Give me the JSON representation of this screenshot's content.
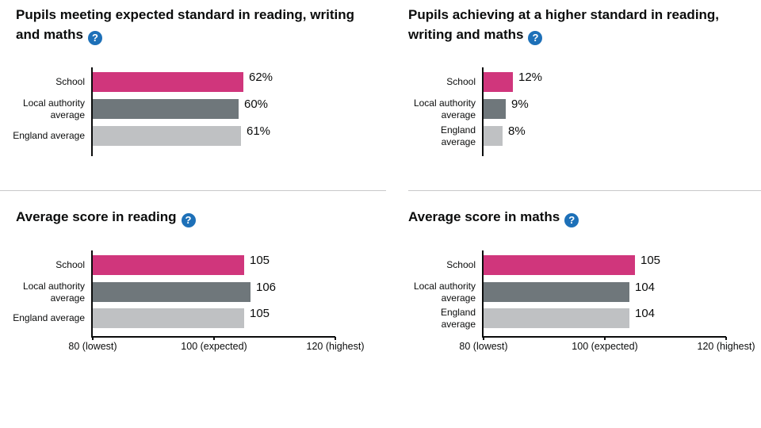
{
  "page": {
    "help_icon_glyph": "?"
  },
  "colors": {
    "title_text": "#0b0c0c",
    "axis": "#0b0c0c",
    "divider": "#c8c9ca",
    "help_icon_bg": "#1d70b8",
    "school_bar": "#d0367c",
    "local_authority_bar": "#6f777b",
    "england_bar": "#bfc1c3"
  },
  "chart_data": [
    {
      "type": "bar",
      "orientation": "horizontal",
      "title": "Pupils meeting expected standard in reading, writing and maths",
      "categories": [
        "School",
        "Local authority average",
        "England average"
      ],
      "values": [
        62,
        60,
        61
      ],
      "value_labels": [
        "62%",
        "60%",
        "61%"
      ],
      "xlim": [
        0,
        100
      ],
      "unit": "percent",
      "x_ticks": [],
      "bar_colors": [
        "#d0367c",
        "#6f777b",
        "#bfc1c3"
      ],
      "grid": false,
      "legend": "none"
    },
    {
      "type": "bar",
      "orientation": "horizontal",
      "title": "Pupils achieving at a higher standard in reading, writing and maths",
      "categories": [
        "School",
        "Local authority average",
        "England average"
      ],
      "values": [
        12,
        9,
        8
      ],
      "value_labels": [
        "12%",
        "9%",
        "8%"
      ],
      "xlim": [
        0,
        100
      ],
      "unit": "percent",
      "x_ticks": [],
      "bar_colors": [
        "#d0367c",
        "#6f777b",
        "#bfc1c3"
      ],
      "grid": false,
      "legend": "none"
    },
    {
      "type": "bar",
      "orientation": "horizontal",
      "title": "Average score in reading",
      "categories": [
        "School",
        "Local authority average",
        "England average"
      ],
      "values": [
        105,
        106,
        105
      ],
      "value_labels": [
        "105",
        "106",
        "105"
      ],
      "xlim": [
        80,
        120
      ],
      "unit": "scaled score",
      "x_ticks": [
        {
          "value": 80,
          "label": "80 (lowest)"
        },
        {
          "value": 100,
          "label": "100 (expected)"
        },
        {
          "value": 120,
          "label": "120 (highest)"
        }
      ],
      "bar_colors": [
        "#d0367c",
        "#6f777b",
        "#bfc1c3"
      ],
      "grid": false,
      "legend": "none"
    },
    {
      "type": "bar",
      "orientation": "horizontal",
      "title": "Average score in maths",
      "categories": [
        "School",
        "Local authority average",
        "England average"
      ],
      "values": [
        105,
        104,
        104
      ],
      "value_labels": [
        "105",
        "104",
        "104"
      ],
      "xlim": [
        80,
        120
      ],
      "unit": "scaled score",
      "x_ticks": [
        {
          "value": 80,
          "label": "80 (lowest)"
        },
        {
          "value": 100,
          "label": "100 (expected)"
        },
        {
          "value": 120,
          "label": "120 (highest)"
        }
      ],
      "bar_colors": [
        "#d0367c",
        "#6f777b",
        "#bfc1c3"
      ],
      "grid": false,
      "legend": "none"
    }
  ]
}
